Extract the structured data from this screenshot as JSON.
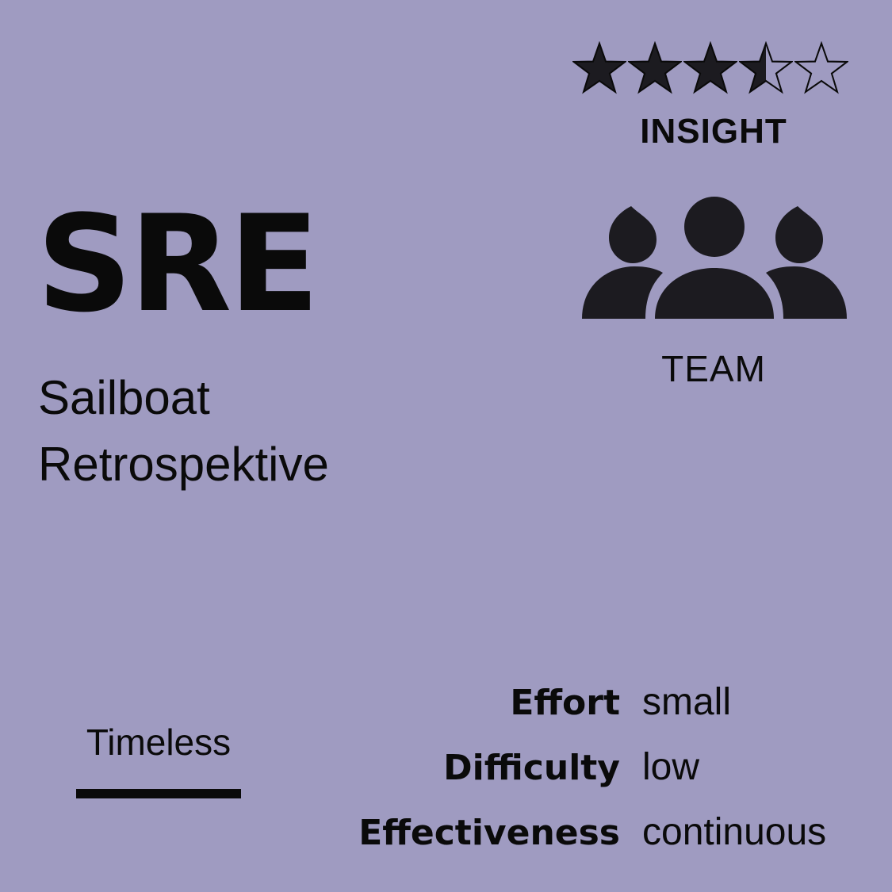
{
  "rating": {
    "value": 3.5,
    "max": 5
  },
  "category": "INSIGHT",
  "code": "SRE",
  "title_lines": [
    "Sailboat",
    "Retrospektive"
  ],
  "audience": {
    "icon": "team-icon",
    "label": "TEAM"
  },
  "tag": "Timeless",
  "stats": [
    {
      "label": "Effort",
      "value": "small"
    },
    {
      "label": "Difficulty",
      "value": "low"
    },
    {
      "label": "Effectiveness",
      "value": "continuous"
    }
  ],
  "colors": {
    "background": "#9f9bc1",
    "ink": "#0a0a0a",
    "icon": "#1c1b20"
  }
}
